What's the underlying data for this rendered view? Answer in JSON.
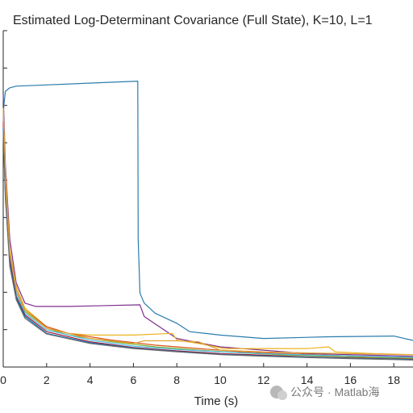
{
  "chart_data": {
    "type": "line",
    "title": "Estimated Log-Determinant Covariance (Full State), K=10, L=1",
    "xlabel": "Time (s)",
    "ylabel": "",
    "xlim": [
      0,
      20
    ],
    "ylim": [
      0,
      10
    ],
    "xticks": [
      "0",
      "2",
      "4",
      "6",
      "8",
      "10",
      "12",
      "14",
      "16",
      "18"
    ],
    "grid": false,
    "legend": "none",
    "series": [
      {
        "color": "#2a7bad",
        "x": [
          0,
          0.05,
          0.1,
          0.3,
          0.6,
          6.2,
          6.22,
          6.3,
          6.5,
          7,
          8,
          8.6,
          10,
          12,
          15,
          18,
          19.5,
          20
        ],
        "y": [
          7.6,
          7.9,
          8.2,
          8.3,
          8.35,
          8.5,
          3.8,
          2.2,
          1.9,
          1.6,
          1.3,
          1.05,
          0.95,
          0.85,
          0.9,
          0.92,
          0.7,
          0.68
        ]
      },
      {
        "color": "#7e2f8e",
        "x": [
          0,
          0.1,
          0.3,
          0.6,
          1,
          1.5,
          3,
          6.3,
          6.5,
          8,
          10,
          14,
          20
        ],
        "y": [
          8.1,
          6.0,
          3.8,
          2.5,
          1.9,
          1.8,
          1.8,
          1.85,
          1.5,
          0.85,
          0.6,
          0.4,
          0.3
        ]
      },
      {
        "color": "#edb120",
        "x": [
          0,
          0.1,
          0.3,
          0.6,
          1,
          2,
          3,
          4,
          6,
          7.8,
          8,
          9,
          10.2,
          12,
          14,
          15,
          15.3,
          17,
          20
        ],
        "y": [
          7.7,
          5.8,
          3.5,
          2.4,
          1.75,
          1.2,
          1.0,
          0.95,
          0.95,
          1.0,
          0.8,
          0.7,
          0.55,
          0.55,
          0.55,
          0.6,
          0.45,
          0.4,
          0.35
        ]
      },
      {
        "color": "#d95319",
        "x": [
          0,
          0.1,
          0.3,
          0.6,
          1,
          2,
          3,
          5,
          7,
          9,
          11,
          13,
          15,
          17,
          20
        ],
        "y": [
          7.4,
          5.5,
          3.4,
          2.3,
          1.7,
          1.2,
          1.0,
          0.8,
          0.65,
          0.55,
          0.45,
          0.4,
          0.35,
          0.3,
          0.25
        ]
      },
      {
        "color": "#77ac30",
        "x": [
          0,
          0.1,
          0.3,
          0.6,
          1,
          2,
          3,
          5,
          7,
          9,
          11,
          13,
          15,
          17,
          20
        ],
        "y": [
          7.2,
          5.3,
          3.3,
          2.2,
          1.65,
          1.15,
          0.95,
          0.75,
          0.6,
          0.5,
          0.42,
          0.36,
          0.32,
          0.28,
          0.24
        ]
      },
      {
        "color": "#4dbeee",
        "x": [
          0,
          0.1,
          0.3,
          0.6,
          1,
          2,
          4,
          6,
          8,
          10,
          12,
          14,
          16,
          18,
          20
        ],
        "y": [
          7.5,
          5.4,
          3.3,
          2.2,
          1.6,
          1.1,
          0.8,
          0.62,
          0.52,
          0.45,
          0.4,
          0.36,
          0.33,
          0.3,
          0.28
        ]
      },
      {
        "color": "#a2142f",
        "x": [
          0,
          0.1,
          0.3,
          0.6,
          1,
          2,
          4,
          6,
          8,
          10,
          12,
          14,
          16,
          18,
          20
        ],
        "y": [
          7.3,
          5.2,
          3.2,
          2.1,
          1.55,
          1.05,
          0.75,
          0.58,
          0.48,
          0.4,
          0.35,
          0.3,
          0.27,
          0.24,
          0.22
        ]
      },
      {
        "color": "#0072bd",
        "x": [
          0,
          0.1,
          0.3,
          0.6,
          1,
          2,
          4,
          6,
          8,
          10,
          12,
          14,
          16,
          18,
          20
        ],
        "y": [
          7.1,
          5.1,
          3.1,
          2.05,
          1.5,
          1.0,
          0.72,
          0.56,
          0.46,
          0.38,
          0.33,
          0.29,
          0.26,
          0.23,
          0.2
        ]
      },
      {
        "color": "#e2a336",
        "x": [
          0,
          0.1,
          0.3,
          0.6,
          1,
          2,
          4,
          6,
          6.5,
          8,
          9,
          10,
          12,
          14,
          20
        ],
        "y": [
          7.6,
          5.6,
          3.4,
          2.3,
          1.7,
          1.15,
          0.85,
          0.7,
          0.78,
          0.78,
          0.75,
          0.5,
          0.45,
          0.42,
          0.35
        ]
      },
      {
        "color": "#6f6f6f",
        "x": [
          0,
          0.1,
          0.3,
          0.6,
          1,
          2,
          4,
          6,
          8,
          10,
          12,
          14,
          16,
          18,
          20
        ],
        "y": [
          7.0,
          5.0,
          3.0,
          2.0,
          1.45,
          0.98,
          0.7,
          0.55,
          0.45,
          0.37,
          0.32,
          0.28,
          0.25,
          0.22,
          0.19
        ]
      }
    ]
  },
  "watermark": {
    "text": "公众号 · Matlab海"
  }
}
